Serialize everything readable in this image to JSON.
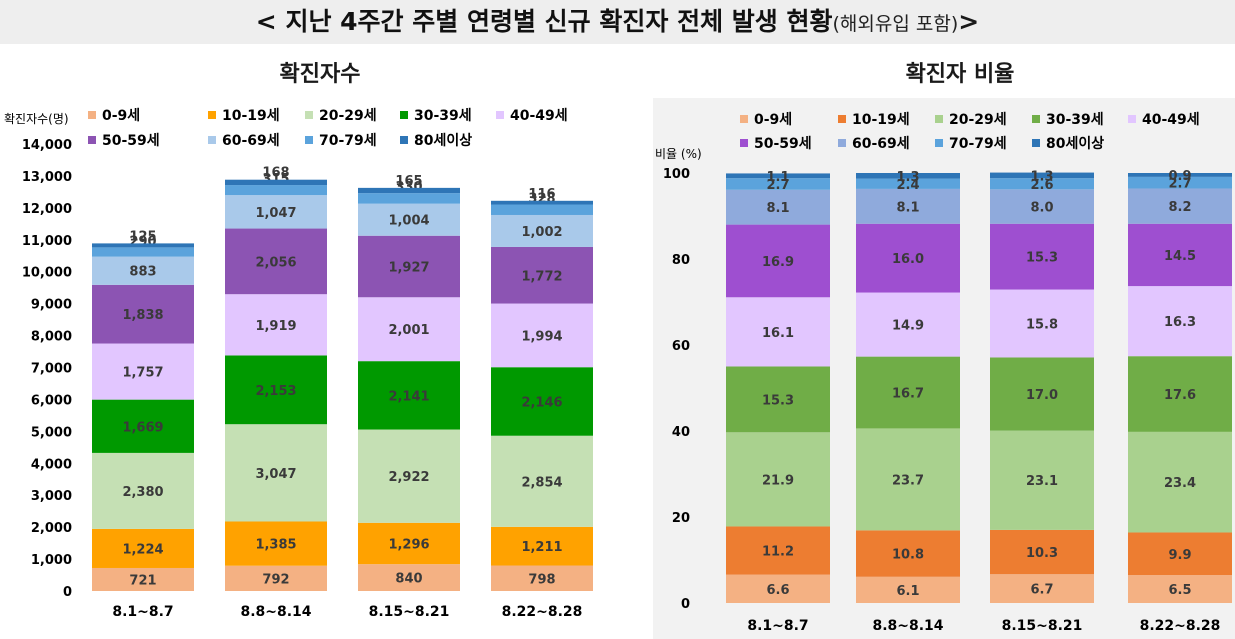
{
  "page_title": {
    "main": "< 지난 4주간 주별 연령별 신규 확진자 전체 발생 현황",
    "sub": "(해외유입 포함)",
    "end": ">"
  },
  "colors": {
    "0-9세": "#f4b183",
    "10-19세_left": "#ffa200",
    "10-19세_right": "#ed7d31",
    "20-29세_left": "#c5e0b4",
    "20-29세_right": "#a9d18e",
    "30-39세_left": "#009900",
    "30-39세_right": "#70ad47",
    "40-49세": "#e2c6ff",
    "50-59세_left": "#8c54b3",
    "50-59세_right": "#9e4fd0",
    "60-69세_left": "#a9c9ea",
    "60-69세_right": "#8faadc",
    "70-79세": "#5ba3dc",
    "80세이상": "#2e75b6"
  },
  "chart_data": [
    {
      "type": "stacked-bar",
      "title": "확진자수",
      "ylabel": "확진자수(명)",
      "ylim": [
        0,
        14000
      ],
      "yticks": [
        "0",
        "1,000",
        "2,000",
        "3,000",
        "4,000",
        "5,000",
        "6,000",
        "7,000",
        "8,000",
        "9,000",
        "10,000",
        "11,000",
        "12,000",
        "13,000",
        "14,000"
      ],
      "categories": [
        "8.1~8.7",
        "8.8~8.14",
        "8.15~8.21",
        "8.22~8.28"
      ],
      "legend": [
        "0-9세",
        "10-19세",
        "20-29세",
        "30-39세",
        "40-49세",
        "50-59세",
        "60-69세",
        "70-79세",
        "80세이상"
      ],
      "series": [
        {
          "name": "0-9세",
          "values": [
            721,
            792,
            840,
            798
          ],
          "labels": [
            "721",
            "792",
            "840",
            "798"
          ]
        },
        {
          "name": "10-19세",
          "values": [
            1224,
            1385,
            1296,
            1211
          ],
          "labels": [
            "1,224",
            "1,385",
            "1,296",
            "1,211"
          ]
        },
        {
          "name": "20-29세",
          "values": [
            2380,
            3047,
            2922,
            2854
          ],
          "labels": [
            "2,380",
            "3,047",
            "2,922",
            "2,854"
          ]
        },
        {
          "name": "30-39세",
          "values": [
            1669,
            2153,
            2141,
            2146
          ],
          "labels": [
            "1,669",
            "2,153",
            "2,141",
            "2,146"
          ]
        },
        {
          "name": "40-49세",
          "values": [
            1757,
            1919,
            2001,
            1994
          ],
          "labels": [
            "1,757",
            "1,919",
            "2,001",
            "1,994"
          ]
        },
        {
          "name": "50-59세",
          "values": [
            1838,
            2056,
            1927,
            1772
          ],
          "labels": [
            "1,838",
            "2,056",
            "1,927",
            "1,772"
          ]
        },
        {
          "name": "60-69세",
          "values": [
            883,
            1047,
            1004,
            1002
          ],
          "labels": [
            "883",
            "1,047",
            "1,004",
            "1,002"
          ]
        },
        {
          "name": "70-79세",
          "values": [
            290,
            315,
            330,
            328
          ],
          "labels": [
            "290",
            "315",
            "330",
            "328"
          ]
        },
        {
          "name": "80세이상",
          "values": [
            125,
            168,
            165,
            116
          ],
          "labels": [
            "125",
            "168",
            "165",
            "116"
          ]
        }
      ]
    },
    {
      "type": "stacked-bar",
      "title": "확진자 비율",
      "ylabel": "비율 (%)",
      "ylim": [
        0,
        100
      ],
      "yticks": [
        "0",
        "20",
        "40",
        "60",
        "80",
        "100"
      ],
      "categories": [
        "8.1~8.7",
        "8.8~8.14",
        "8.15~8.21",
        "8.22~8.28"
      ],
      "legend": [
        "0-9세",
        "10-19세",
        "20-29세",
        "30-39세",
        "40-49세",
        "50-59세",
        "60-69세",
        "70-79세",
        "80세이상"
      ],
      "series": [
        {
          "name": "0-9세",
          "values": [
            6.6,
            6.1,
            6.7,
            6.5
          ],
          "labels": [
            "6.6",
            "6.1",
            "6.7",
            "6.5"
          ]
        },
        {
          "name": "10-19세",
          "values": [
            11.2,
            10.8,
            10.3,
            9.9
          ],
          "labels": [
            "11.2",
            "10.8",
            "10.3",
            "9.9"
          ]
        },
        {
          "name": "20-29세",
          "values": [
            21.9,
            23.7,
            23.1,
            23.4
          ],
          "labels": [
            "21.9",
            "23.7",
            "23.1",
            "23.4"
          ]
        },
        {
          "name": "30-39세",
          "values": [
            15.3,
            16.7,
            17.0,
            17.6
          ],
          "labels": [
            "15.3",
            "16.7",
            "17.0",
            "17.6"
          ]
        },
        {
          "name": "40-49세",
          "values": [
            16.1,
            14.9,
            15.8,
            16.3
          ],
          "labels": [
            "16.1",
            "14.9",
            "15.8",
            "16.3"
          ]
        },
        {
          "name": "50-59세",
          "values": [
            16.9,
            16.0,
            15.3,
            14.5
          ],
          "labels": [
            "16.9",
            "16.0",
            "15.3",
            "14.5"
          ]
        },
        {
          "name": "60-69세",
          "values": [
            8.1,
            8.1,
            8.0,
            8.2
          ],
          "labels": [
            "8.1",
            "8.1",
            "8.0",
            "8.2"
          ]
        },
        {
          "name": "70-79세",
          "values": [
            2.7,
            2.4,
            2.6,
            2.7
          ],
          "labels": [
            "2.7",
            "2.4",
            "2.6",
            "2.7"
          ]
        },
        {
          "name": "80세이상",
          "values": [
            1.1,
            1.3,
            1.3,
            0.9
          ],
          "labels": [
            "1.1",
            "1.3",
            "1.3",
            "0.9"
          ]
        }
      ]
    }
  ]
}
